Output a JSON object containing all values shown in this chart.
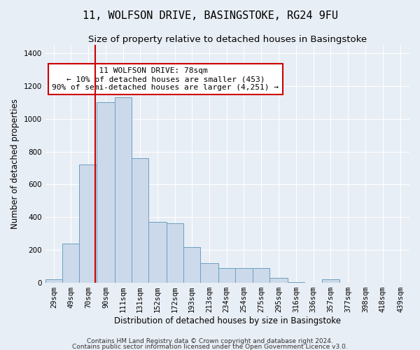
{
  "title": "11, WOLFSON DRIVE, BASINGSTOKE, RG24 9FU",
  "subtitle": "Size of property relative to detached houses in Basingstoke",
  "xlabel": "Distribution of detached houses by size in Basingstoke",
  "ylabel": "Number of detached properties",
  "footnote1": "Contains HM Land Registry data © Crown copyright and database right 2024.",
  "footnote2": "Contains public sector information licensed under the Open Government Licence v3.0.",
  "annotation_line1": "  11 WOLFSON DRIVE: 78sqm       ",
  "annotation_line2": "← 10% of detached houses are smaller (453)",
  "annotation_line3": "90% of semi-detached houses are larger (4,251) →",
  "bar_color": "#ccd9ea",
  "bar_edge_color": "#6a9fc0",
  "vline_color": "#cc0000",
  "vline_x": 78,
  "categories": [
    "29sqm",
    "49sqm",
    "70sqm",
    "90sqm",
    "111sqm",
    "131sqm",
    "152sqm",
    "172sqm",
    "193sqm",
    "213sqm",
    "234sqm",
    "254sqm",
    "275sqm",
    "295sqm",
    "316sqm",
    "336sqm",
    "357sqm",
    "377sqm",
    "398sqm",
    "418sqm",
    "439sqm"
  ],
  "bin_edges": [
    19,
    39,
    59,
    80,
    101,
    121,
    141,
    162,
    182,
    202,
    223,
    243,
    264,
    284,
    305,
    325,
    346,
    366,
    387,
    407,
    428,
    449
  ],
  "values": [
    20,
    240,
    720,
    1100,
    1130,
    760,
    370,
    365,
    220,
    120,
    90,
    90,
    90,
    30,
    5,
    0,
    20,
    0,
    0,
    0,
    0
  ],
  "ylim": [
    0,
    1450
  ],
  "yticks": [
    0,
    200,
    400,
    600,
    800,
    1000,
    1200,
    1400
  ],
  "background_color": "#e8eef5",
  "plot_background": "#e8eef5",
  "title_fontsize": 11,
  "subtitle_fontsize": 9.5,
  "axis_label_fontsize": 8.5,
  "tick_fontsize": 7.5,
  "annotation_fontsize": 8,
  "footnote_fontsize": 6.5,
  "grid_color": "#ffffff"
}
